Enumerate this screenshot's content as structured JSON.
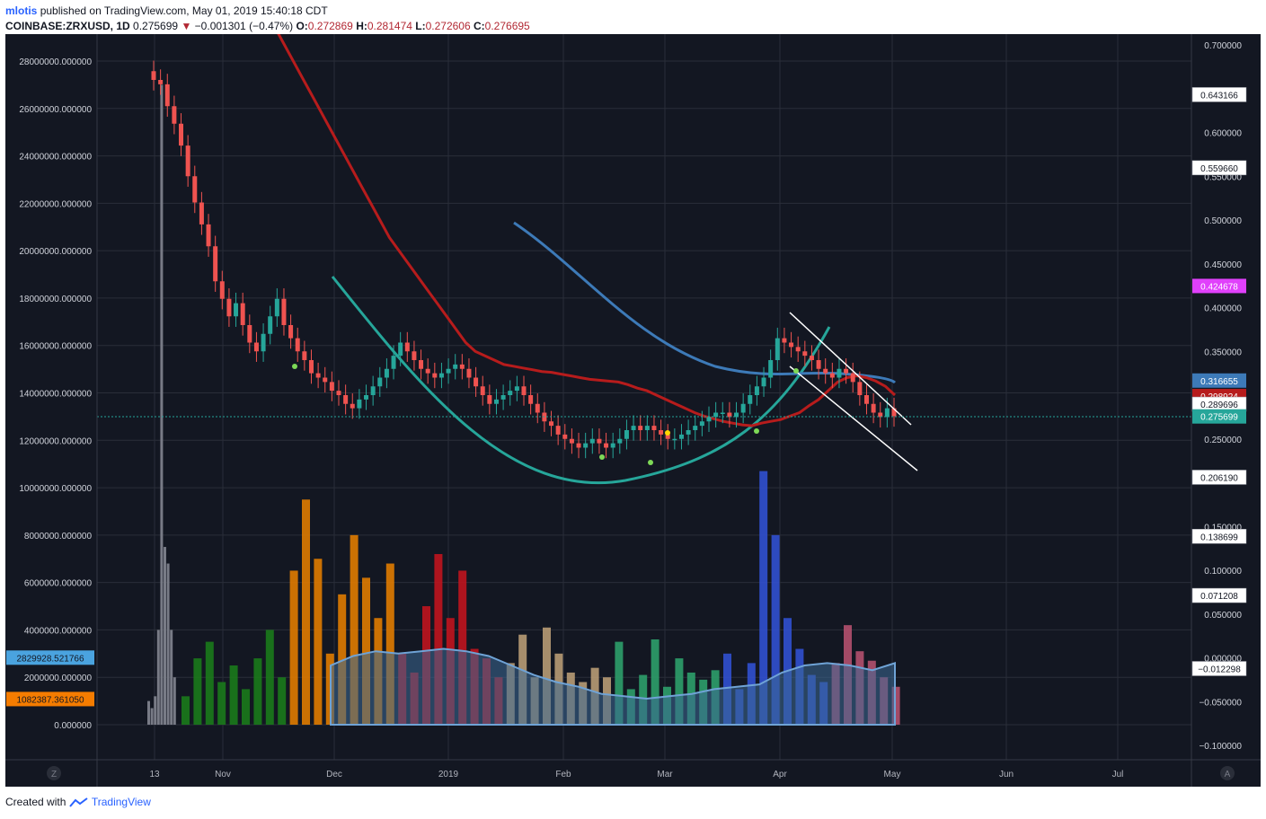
{
  "header": {
    "author": "mlotis",
    "published_text": "published on TradingView.com, May 01, 2019 15:40:18 CDT",
    "symbol": "COINBASE:ZRXUSD, 1D",
    "last": "0.275699",
    "change": "−0.001301 (−0.47%)",
    "o_label": "O:",
    "o_value": "0.272869",
    "h_label": "H:",
    "h_value": "0.281474",
    "l_label": "L:",
    "l_value": "0.272606",
    "c_label": "C:",
    "c_value": "0.276695"
  },
  "footer": {
    "created_with": "Created with",
    "brand": "TradingView"
  },
  "colors": {
    "background": "#131722",
    "grid": "#2a2e39",
    "up": "#26a69a",
    "down": "#ef5350",
    "ma_red": "#b71c1c",
    "ma_blue": "#3d7ab8",
    "arc_green": "#26a69a",
    "vol_ma_fill": "#3d6a96"
  },
  "chart_data": {
    "type": "candlestick",
    "symbol": "COINBASE:ZRXUSD",
    "interval": "1D",
    "x_ticks": [
      "13",
      "Nov",
      "Dec",
      "2019",
      "Feb",
      "Mar",
      "Apr",
      "May",
      "Jun",
      "Jul"
    ],
    "right_axis": {
      "ticks": [
        "0.700000",
        "0.600000",
        "0.550000",
        "0.500000",
        "0.450000",
        "0.400000",
        "0.350000",
        "0.300000",
        "0.250000",
        "0.150000",
        "0.100000",
        "0.050000",
        "0.000000",
        "−0.050000",
        "−0.100000"
      ],
      "tick_values": [
        0.7,
        0.6,
        0.55,
        0.5,
        0.45,
        0.4,
        0.35,
        0.3,
        0.25,
        0.15,
        0.1,
        0.05,
        0.0,
        -0.05,
        -0.1
      ],
      "range": [
        -0.1,
        0.7
      ]
    },
    "left_axis": {
      "ticks": [
        "28000000.000000",
        "26000000.000000",
        "24000000.000000",
        "22000000.000000",
        "20000000.000000",
        "18000000.000000",
        "16000000.000000",
        "14000000.000000",
        "12000000.000000",
        "10000000.000000",
        "8000000.000000",
        "6000000.000000",
        "4000000.000000",
        "2000000.000000",
        "0.000000"
      ],
      "tick_values": [
        28000000,
        26000000,
        24000000,
        22000000,
        20000000,
        18000000,
        16000000,
        14000000,
        12000000,
        10000000,
        8000000,
        6000000,
        4000000,
        2000000,
        0
      ],
      "range": [
        0,
        28000000
      ]
    },
    "price_labels": [
      {
        "text": "0.643166",
        "value": 0.643166,
        "color": "#ffffff"
      },
      {
        "text": "0.559660",
        "value": 0.55966,
        "color": "#ffffff"
      },
      {
        "text": "0.424678",
        "value": 0.424678,
        "color": "#e040fb"
      },
      {
        "text": "0.316655",
        "value": 0.316655,
        "color": "#3d7ab8"
      },
      {
        "text": "0.298924",
        "value": 0.298924,
        "color": "#b71c1c"
      },
      {
        "text": "0.289696",
        "value": 0.289696,
        "color": "#ffffff"
      },
      {
        "text": "0.275699",
        "value": 0.275699,
        "color": "#26a69a"
      },
      {
        "text": "0.206190",
        "value": 0.20619,
        "color": "#ffffff"
      },
      {
        "text": "0.138699",
        "value": 0.138699,
        "color": "#ffffff"
      },
      {
        "text": "0.071208",
        "value": 0.071208,
        "color": "#ffffff"
      },
      {
        "text": "−0.012298",
        "value": -0.012298,
        "color": "#ffffff"
      }
    ],
    "volume_labels": [
      {
        "text": "2829928.521766",
        "value": 2829928.521766,
        "color": "#4aa3df"
      },
      {
        "text": "1082387.361050",
        "value": 1082387.36105,
        "color": "#f57c00"
      }
    ],
    "series": {
      "price_close": [
        0.66,
        0.655,
        0.63,
        0.61,
        0.585,
        0.55,
        0.52,
        0.495,
        0.47,
        0.43,
        0.41,
        0.39,
        0.405,
        0.38,
        0.36,
        0.35,
        0.37,
        0.39,
        0.41,
        0.38,
        0.365,
        0.35,
        0.34,
        0.325,
        0.32,
        0.315,
        0.305,
        0.3,
        0.29,
        0.285,
        0.295,
        0.3,
        0.31,
        0.32,
        0.33,
        0.345,
        0.36,
        0.35,
        0.34,
        0.33,
        0.325,
        0.32,
        0.325,
        0.33,
        0.335,
        0.33,
        0.32,
        0.31,
        0.3,
        0.29,
        0.295,
        0.3,
        0.305,
        0.31,
        0.3,
        0.29,
        0.28,
        0.27,
        0.265,
        0.255,
        0.25,
        0.245,
        0.24,
        0.245,
        0.25,
        0.245,
        0.24,
        0.245,
        0.25,
        0.26,
        0.265,
        0.26,
        0.265,
        0.26,
        0.255,
        0.25,
        0.25,
        0.255,
        0.26,
        0.265,
        0.27,
        0.275,
        0.28,
        0.28,
        0.275,
        0.28,
        0.29,
        0.3,
        0.31,
        0.32,
        0.34,
        0.365,
        0.36,
        0.355,
        0.35,
        0.345,
        0.34,
        0.33,
        0.325,
        0.32,
        0.33,
        0.325,
        0.315,
        0.3,
        0.29,
        0.28,
        0.275,
        0.285,
        0.276
      ],
      "ma_red": [
        0.72,
        0.7,
        0.68,
        0.66,
        0.64,
        0.62,
        0.6,
        0.58,
        0.56,
        0.54,
        0.52,
        0.5,
        0.48,
        0.465,
        0.45,
        0.435,
        0.42,
        0.405,
        0.39,
        0.375,
        0.36,
        0.35,
        0.345,
        0.34,
        0.335,
        0.333,
        0.331,
        0.329,
        0.327,
        0.326,
        0.324,
        0.322,
        0.32,
        0.318,
        0.317,
        0.316,
        0.315,
        0.312,
        0.308,
        0.305,
        0.3,
        0.295,
        0.29,
        0.285,
        0.28,
        0.276,
        0.273,
        0.27,
        0.268,
        0.266,
        0.265,
        0.268,
        0.27,
        0.272,
        0.276,
        0.28,
        0.288,
        0.295,
        0.305,
        0.315,
        0.32,
        0.322,
        0.32,
        0.316,
        0.31,
        0.3
      ]
    },
    "volume": {
      "ma": [
        2500000,
        2900000,
        3100000,
        3000000,
        3100000,
        3200000,
        3100000,
        2900000,
        2500000,
        2100000,
        1800000,
        1600000,
        1300000,
        1200000,
        1100000,
        1200000,
        1300000,
        1500000,
        1600000,
        1700000,
        2200000,
        2500000,
        2600000,
        2500000,
        2300000,
        2600000
      ],
      "bars": [
        1200000,
        2800000,
        3500000,
        1800000,
        2500000,
        1500000,
        2800000,
        4000000,
        2000000,
        6500000,
        9500000,
        7000000,
        3000000,
        5500000,
        8000000,
        6200000,
        4500000,
        6800000,
        3000000,
        2200000,
        5000000,
        7200000,
        4500000,
        6500000,
        3200000,
        2800000,
        2000000,
        2600000,
        3800000,
        2000000,
        4100000,
        3000000,
        2200000,
        1800000,
        2400000,
        2000000,
        3500000,
        1500000,
        2100000,
        3600000,
        1600000,
        2800000,
        2200000,
        1900000,
        2300000,
        3000000,
        1500000,
        2600000,
        10700000,
        8000000,
        4500000,
        3200000,
        2100000,
        1800000,
        2600000,
        4200000,
        3100000,
        2700000,
        2000000,
        1600000
      ]
    }
  }
}
